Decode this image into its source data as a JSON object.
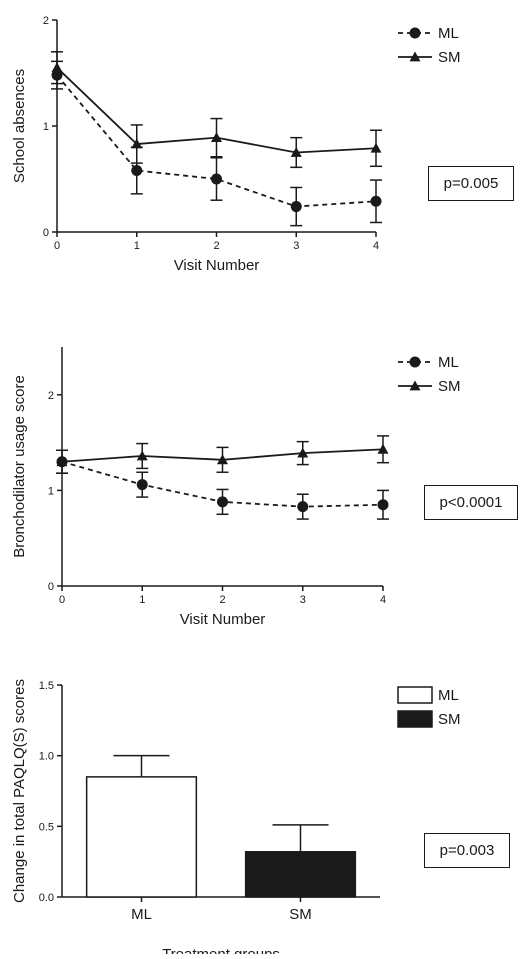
{
  "chart_data": [
    {
      "type": "line",
      "xlabel": "Visit Number",
      "ylabel": "School absences",
      "x": [
        0,
        1,
        2,
        3,
        4
      ],
      "xlim": [
        0,
        4
      ],
      "ylim": [
        0,
        2
      ],
      "yticks": [
        0,
        1,
        2
      ],
      "grid": false,
      "legend_position": "top-right",
      "series": [
        {
          "name": "ML",
          "style": "dashed",
          "marker": "circle",
          "values": [
            1.48,
            0.58,
            0.5,
            0.24,
            0.29
          ],
          "errors": [
            0.13,
            0.22,
            0.2,
            0.18,
            0.2
          ]
        },
        {
          "name": "SM",
          "style": "solid",
          "marker": "triangle",
          "values": [
            1.55,
            0.83,
            0.89,
            0.75,
            0.79
          ],
          "errors": [
            0.15,
            0.18,
            0.18,
            0.14,
            0.17
          ]
        }
      ],
      "annotation": "p=0.005"
    },
    {
      "type": "line",
      "xlabel": "Visit Number",
      "ylabel": "Bronchodilator usage score",
      "x": [
        0,
        1,
        2,
        3,
        4
      ],
      "xlim": [
        0,
        4
      ],
      "ylim": [
        0,
        2.5
      ],
      "yticks": [
        0,
        1,
        2
      ],
      "grid": false,
      "legend_position": "top-right",
      "series": [
        {
          "name": "ML",
          "style": "dashed",
          "marker": "circle",
          "values": [
            1.3,
            1.06,
            0.88,
            0.83,
            0.85
          ],
          "errors": [
            0.12,
            0.13,
            0.13,
            0.13,
            0.15
          ]
        },
        {
          "name": "SM",
          "style": "solid",
          "marker": "triangle",
          "values": [
            1.3,
            1.36,
            1.32,
            1.39,
            1.43
          ],
          "errors": [
            0.12,
            0.13,
            0.13,
            0.12,
            0.14
          ]
        }
      ],
      "annotation": "p<0.0001"
    },
    {
      "type": "bar",
      "xlabel": "Treatment groups",
      "ylabel": "Change in total PAQLQ(S) scores",
      "categories": [
        "ML",
        "SM"
      ],
      "ylim": [
        0,
        1.5
      ],
      "yticks": [
        "0.0",
        "0.5",
        "1.0",
        "1.5"
      ],
      "grid": false,
      "legend_position": "top-right",
      "series": [
        {
          "name": "ML",
          "fill": "white",
          "value": 0.85,
          "error": 0.15
        },
        {
          "name": "SM",
          "fill": "black",
          "value": 0.32,
          "error": 0.19
        }
      ],
      "annotation": "p=0.003"
    }
  ]
}
